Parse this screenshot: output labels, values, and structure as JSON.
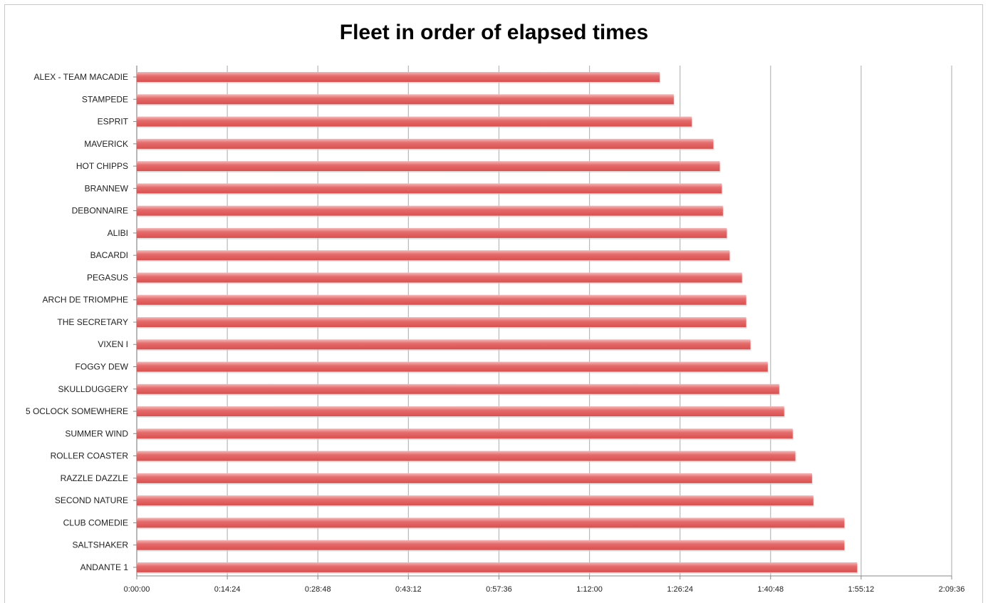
{
  "chart_data": {
    "type": "bar",
    "orientation": "horizontal",
    "title": "Fleet in order of elapsed times",
    "xlabel": "",
    "ylabel": "",
    "value_unit": "seconds (elapsed time, shown as h:mm:ss)",
    "xlim": [
      0,
      7776
    ],
    "x_ticks": [
      0,
      864,
      1728,
      2592,
      3456,
      4320,
      5184,
      6048,
      6912,
      7776
    ],
    "x_tick_labels": [
      "0:00:00",
      "0:14:24",
      "0:28:48",
      "0:43:12",
      "0:57:36",
      "1:12:00",
      "1:26:24",
      "1:40:48",
      "1:55:12",
      "2:09:36"
    ],
    "grid": true,
    "legend": "none",
    "bar_color": "#e56b6b",
    "bar_highlight": "#f6b8b8",
    "categories": [
      "ALEX - TEAM MACADIE",
      "STAMPEDE",
      "ESPRIT",
      "MAVERICK",
      "HOT CHIPPS",
      "BRANNEW",
      "DEBONNAIRE",
      "ALIBI",
      "BACARDI",
      "PEGASUS",
      "ARCH DE TRIOMPHE",
      "THE SECRETARY",
      "VIXEN I",
      "FOGGY DEW",
      "SKULLDUGGERY",
      "5 OCLOCK SOMEWHERE",
      "SUMMER WIND",
      "ROLLER COASTER",
      "RAZZLE DAZZLE",
      "SECOND NATURE",
      "CLUB COMEDIE",
      "SALTSHAKER",
      "ANDANTE 1"
    ],
    "values": [
      4990,
      5124,
      5295,
      5502,
      5563,
      5582,
      5593,
      5630,
      5657,
      5775,
      5815,
      5815,
      5856,
      6021,
      6130,
      6177,
      6259,
      6284,
      6443,
      6456,
      6752,
      6752,
      6874
    ]
  }
}
